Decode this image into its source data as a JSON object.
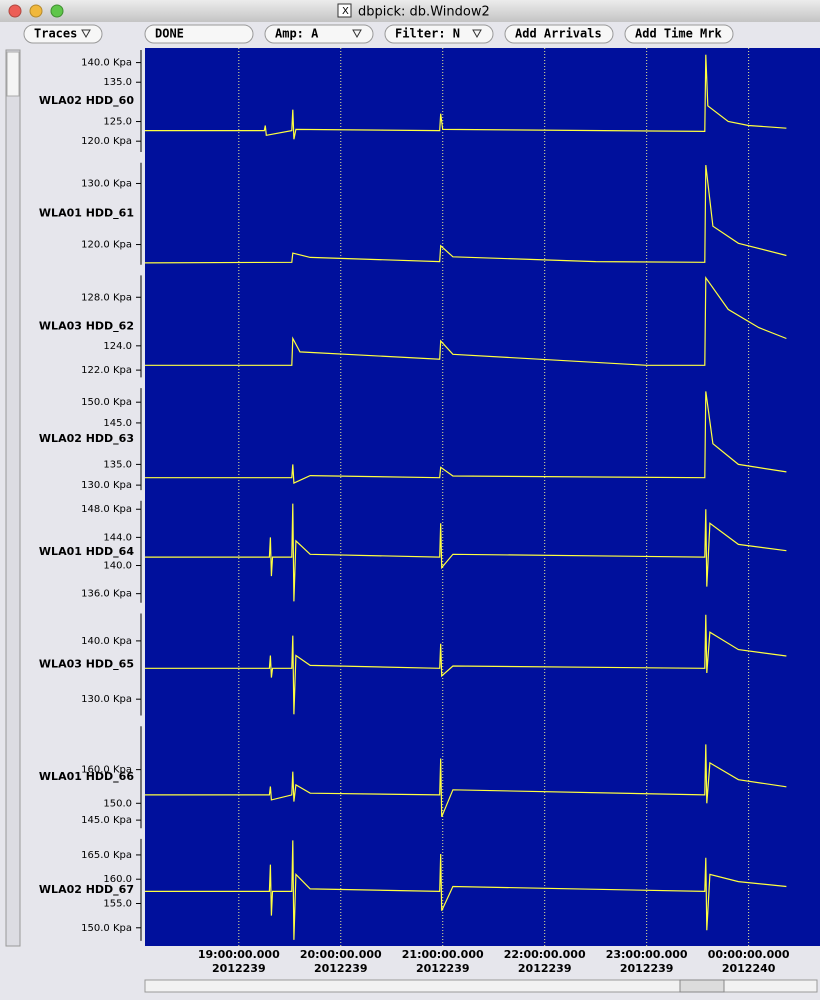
{
  "window": {
    "title": "dbpick: db.Window2"
  },
  "toolbar": {
    "buttons": [
      "Traces",
      "DONE",
      "Amp: A",
      "Filter: N",
      "Add Arrivals",
      "Add Time Mrk"
    ]
  },
  "time_axis": {
    "xlim": [
      18.08,
      24.7
    ],
    "ticks": [
      {
        "value": 19,
        "label": "19:00:00.000",
        "date": "2012239"
      },
      {
        "value": 20,
        "label": "20:00:00.000",
        "date": "2012239"
      },
      {
        "value": 21,
        "label": "21:00:00.000",
        "date": "2012239"
      },
      {
        "value": 22,
        "label": "22:00:00.000",
        "date": "2012239"
      },
      {
        "value": 23,
        "label": "23:00:00.000",
        "date": "2012239"
      },
      {
        "value": 24,
        "label": "00:00:00.000",
        "date": "2012240"
      }
    ]
  },
  "panels": [
    {
      "label": "WLA02 HDD_60",
      "ylim": [
        117.25,
        143.2
      ],
      "yticks": [
        {
          "value": 140,
          "label": "140.0 Kpa"
        },
        {
          "value": 135,
          "label": "135.0"
        },
        {
          "value": 125,
          "label": "125.0"
        },
        {
          "value": 120,
          "label": "120.0 Kpa"
        }
      ],
      "trace": {
        "x": [
          18.08,
          19.25,
          19.26,
          19.27,
          19.52,
          19.53,
          19.54,
          19.56,
          20.97,
          20.98,
          21.0,
          23.57,
          23.58,
          23.6,
          23.8,
          24.0,
          24.37
        ],
        "y": [
          122.7,
          122.7,
          124,
          121.5,
          122.7,
          128,
          120.5,
          123,
          122.7,
          127,
          123,
          122.5,
          142,
          129,
          125,
          124,
          123.3
        ]
      }
    },
    {
      "label": "WLA01 HDD_61",
      "ylim": [
        116.7,
        133.4
      ],
      "yticks": [
        {
          "value": 130,
          "label": "130.0 Kpa"
        },
        {
          "value": 120,
          "label": "120.0 Kpa"
        }
      ],
      "trace": {
        "x": [
          18.08,
          19.52,
          19.53,
          19.7,
          20.97,
          20.98,
          21.1,
          22.5,
          23.57,
          23.58,
          23.65,
          23.9,
          24.37
        ],
        "y": [
          117,
          117.1,
          118.6,
          117.9,
          117.2,
          119.8,
          118,
          117.2,
          117.1,
          133,
          123,
          120.2,
          118.2
        ]
      }
    },
    {
      "label": "WLA03 HDD_62",
      "ylim": [
        121.4,
        129.8
      ],
      "yticks": [
        {
          "value": 128,
          "label": "128.0 Kpa"
        },
        {
          "value": 124,
          "label": "124.0"
        },
        {
          "value": 122,
          "label": "122.0 Kpa"
        }
      ],
      "trace": {
        "x": [
          18.08,
          19.52,
          19.53,
          19.6,
          20.97,
          20.98,
          21.1,
          23.0,
          23.57,
          23.58,
          23.8,
          24.1,
          24.37
        ],
        "y": [
          122.4,
          122.4,
          124.6,
          123.5,
          122.9,
          124.4,
          123.3,
          122.4,
          122.4,
          129.6,
          127,
          125.5,
          124.6
        ]
      }
    },
    {
      "label": "WLA02 HDD_63",
      "ylim": [
        128.8,
        153.4
      ],
      "yticks": [
        {
          "value": 150,
          "label": "150.0 Kpa"
        },
        {
          "value": 145,
          "label": "145.0"
        },
        {
          "value": 135,
          "label": "135.0"
        },
        {
          "value": 130,
          "label": "130.0 Kpa"
        }
      ],
      "trace": {
        "x": [
          18.08,
          19.52,
          19.53,
          19.54,
          19.7,
          20.97,
          20.98,
          21.1,
          23.57,
          23.58,
          23.65,
          23.9,
          24.37
        ],
        "y": [
          131.8,
          131.8,
          135,
          130.5,
          132.3,
          131.8,
          134.3,
          132.2,
          131.8,
          152.6,
          140,
          135,
          133.2
        ]
      }
    },
    {
      "label": "WLA01 HDD_64",
      "ylim": [
        134.7,
        149.2
      ],
      "yticks": [
        {
          "value": 148,
          "label": "148.0 Kpa"
        },
        {
          "value": 144,
          "label": "144.0"
        },
        {
          "value": 140,
          "label": "140.0"
        },
        {
          "value": 136,
          "label": "136.0 Kpa"
        }
      ],
      "trace": {
        "x": [
          18.08,
          19.3,
          19.31,
          19.32,
          19.33,
          19.52,
          19.53,
          19.54,
          19.56,
          19.7,
          20.97,
          20.98,
          20.99,
          21.1,
          23.57,
          23.58,
          23.59,
          23.62,
          23.9,
          24.37
        ],
        "y": [
          141.2,
          141.2,
          144,
          138.5,
          141.2,
          141.2,
          148.8,
          134.9,
          143.5,
          141.6,
          141.2,
          146,
          139.7,
          141.6,
          141.2,
          148,
          137,
          146,
          143,
          142.1
        ]
      }
    },
    {
      "label": "WLA03 HDD_65",
      "ylim": [
        127.2,
        144.7
      ],
      "yticks": [
        {
          "value": 140,
          "label": "140.0 Kpa"
        },
        {
          "value": 130,
          "label": "130.0 Kpa"
        }
      ],
      "trace": {
        "x": [
          18.08,
          19.3,
          19.31,
          19.32,
          19.33,
          19.52,
          19.53,
          19.54,
          19.56,
          19.7,
          20.97,
          20.98,
          20.99,
          21.1,
          23.57,
          23.58,
          23.59,
          23.62,
          23.9,
          24.37
        ],
        "y": [
          135.3,
          135.3,
          137.5,
          133.7,
          135.3,
          135.3,
          140.9,
          127.4,
          137.5,
          135.8,
          135.3,
          139.5,
          134,
          135.7,
          135.3,
          144.5,
          134.5,
          141.5,
          138.5,
          137.4
        ]
      }
    },
    {
      "label": "WLA01 HDD_66",
      "ylim": [
        142.6,
        172.9
      ],
      "yticks": [
        {
          "value": 160,
          "label": "160.0 Kpa"
        },
        {
          "value": 150,
          "label": "150.0"
        },
        {
          "value": 145,
          "label": "145.0 Kpa"
        }
      ],
      "trace": {
        "x": [
          18.08,
          19.3,
          19.31,
          19.32,
          19.52,
          19.53,
          19.54,
          19.56,
          19.7,
          20.97,
          20.98,
          20.99,
          21.1,
          23.57,
          23.58,
          23.59,
          23.62,
          23.9,
          24.37
        ],
        "y": [
          152.5,
          152.5,
          155,
          151,
          152.5,
          159.4,
          150.5,
          155.5,
          153,
          152.5,
          163.3,
          146,
          154,
          152.5,
          167.5,
          150,
          162,
          157,
          154.9
        ]
      }
    },
    {
      "label": "WLA02 HDD_67",
      "ylim": [
        147.3,
        168.3
      ],
      "yticks": [
        {
          "value": 165,
          "label": "165.0 Kpa"
        },
        {
          "value": 160,
          "label": "160.0"
        },
        {
          "value": 155,
          "label": "155.0"
        },
        {
          "value": 150,
          "label": "150.0 Kpa"
        }
      ],
      "trace": {
        "x": [
          18.08,
          19.3,
          19.31,
          19.32,
          19.33,
          19.52,
          19.53,
          19.54,
          19.56,
          19.7,
          20.97,
          20.98,
          20.99,
          21.1,
          23.57,
          23.58,
          23.59,
          23.62,
          23.9,
          24.37
        ],
        "y": [
          157.5,
          157.5,
          163,
          152.5,
          157.5,
          157.5,
          168,
          147.5,
          161,
          158,
          157.5,
          165.2,
          153.5,
          158.5,
          157.5,
          164.4,
          149.5,
          161,
          159.5,
          158.5
        ]
      }
    }
  ]
}
